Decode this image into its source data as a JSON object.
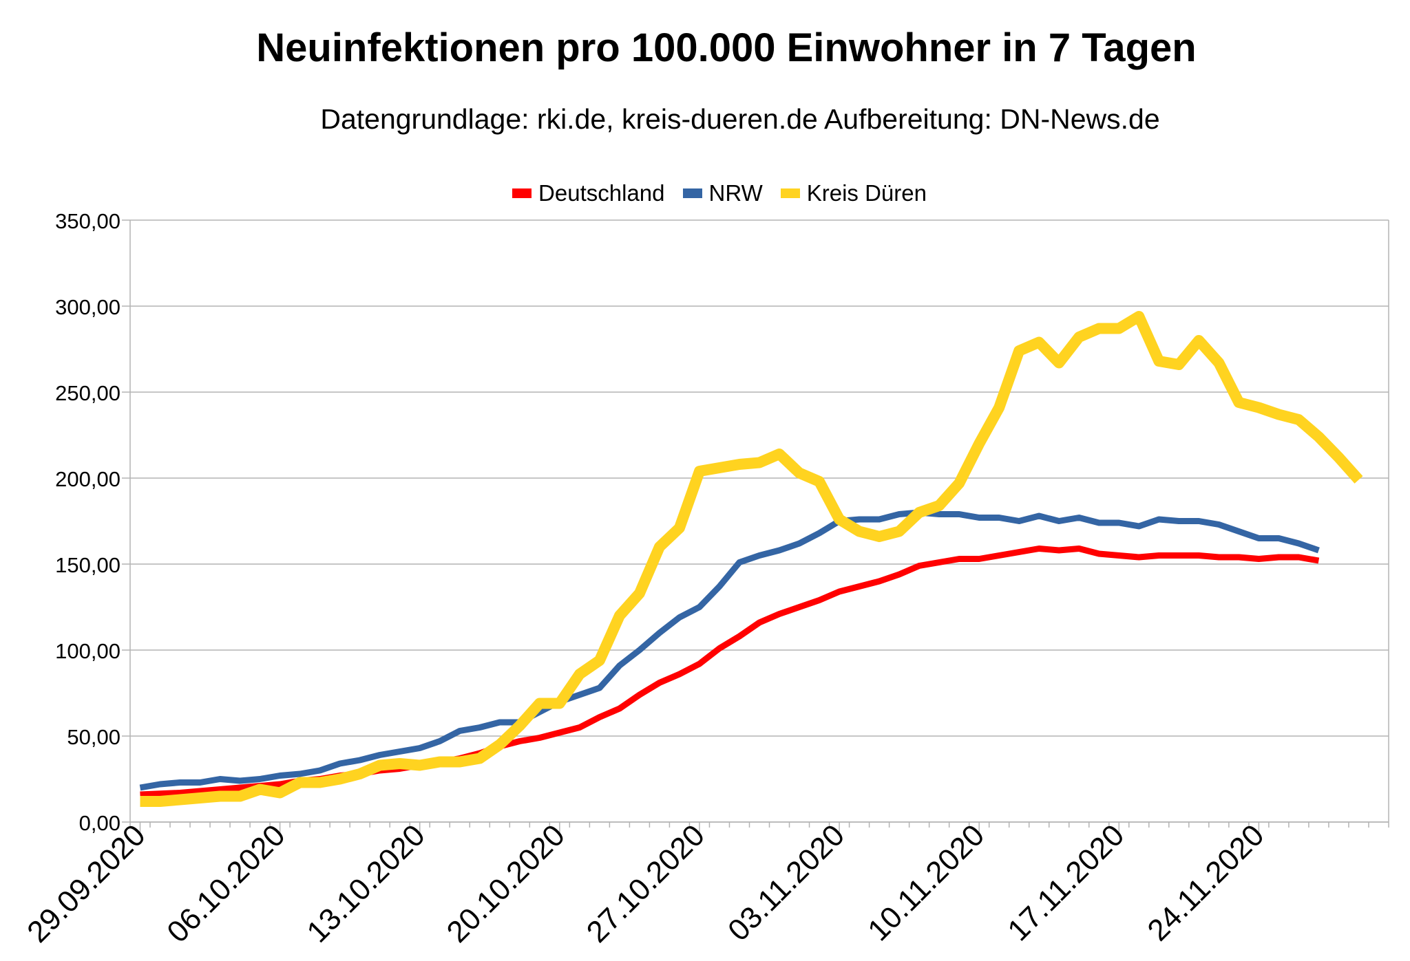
{
  "chart_data": {
    "type": "line",
    "title": "Neuinfektionen pro 100.000 Einwohner in 7 Tagen",
    "subtitle": "Datengrundlage: rki.de, kreis-dueren.de Aufbereitung: DN-News.de",
    "xlabel": "",
    "ylabel": "",
    "ylim": [
      0,
      350
    ],
    "y_ticks": [
      "0,00",
      "50,00",
      "100,00",
      "150,00",
      "200,00",
      "250,00",
      "300,00",
      "350,00"
    ],
    "x_tick_labels": [
      "29.09.2020",
      "06.10.2020",
      "13.10.2020",
      "20.10.2020",
      "27.10.2020",
      "03.11.2020",
      "10.11.2020",
      "17.11.2020",
      "24.11.2020"
    ],
    "grid": true,
    "legend_position": "top",
    "x_start": "29.09.2020",
    "series": [
      {
        "name": "Deutschland",
        "color": "#ff0000",
        "values": [
          16,
          16.5,
          17,
          18,
          19,
          20,
          21,
          22,
          24,
          25,
          27,
          28,
          30,
          31,
          33,
          35,
          37,
          40,
          44,
          47,
          49,
          52,
          55,
          61,
          66,
          74,
          81,
          86,
          92,
          101,
          108,
          116,
          121,
          125,
          129,
          134,
          137,
          140,
          144,
          149,
          151,
          153,
          153,
          155,
          157,
          159,
          158,
          159,
          156,
          155,
          154,
          155,
          155,
          155,
          154,
          154,
          153,
          154,
          154,
          152
        ]
      },
      {
        "name": "NRW",
        "color": "#3465a4",
        "values": [
          20,
          22,
          23,
          23,
          25,
          24,
          25,
          27,
          28,
          30,
          34,
          36,
          39,
          41,
          43,
          47,
          53,
          55,
          58,
          58,
          64,
          70,
          74,
          78,
          91,
          100,
          110,
          119,
          125,
          137,
          151,
          155,
          158,
          162,
          168,
          175,
          176,
          176,
          179,
          180,
          179,
          179,
          177,
          177,
          175,
          178,
          175,
          177,
          174,
          174,
          172,
          176,
          175,
          175,
          173,
          169,
          165,
          165,
          162,
          158
        ]
      },
      {
        "name": "Kreis Düren",
        "color": "#ffd320",
        "values": [
          12,
          12,
          13,
          14,
          15,
          15,
          19,
          17,
          23,
          23,
          25,
          28,
          33,
          34,
          33,
          35,
          35,
          37,
          45,
          56,
          69,
          69,
          86,
          94,
          120,
          133,
          160,
          171,
          204,
          206,
          208,
          209,
          214,
          203,
          198,
          176,
          169,
          166,
          169,
          180,
          184,
          197,
          220,
          241,
          274,
          279,
          267,
          282,
          287,
          287,
          294,
          268,
          266,
          280,
          267,
          244,
          241,
          237,
          234,
          224,
          212,
          199
        ]
      }
    ]
  }
}
